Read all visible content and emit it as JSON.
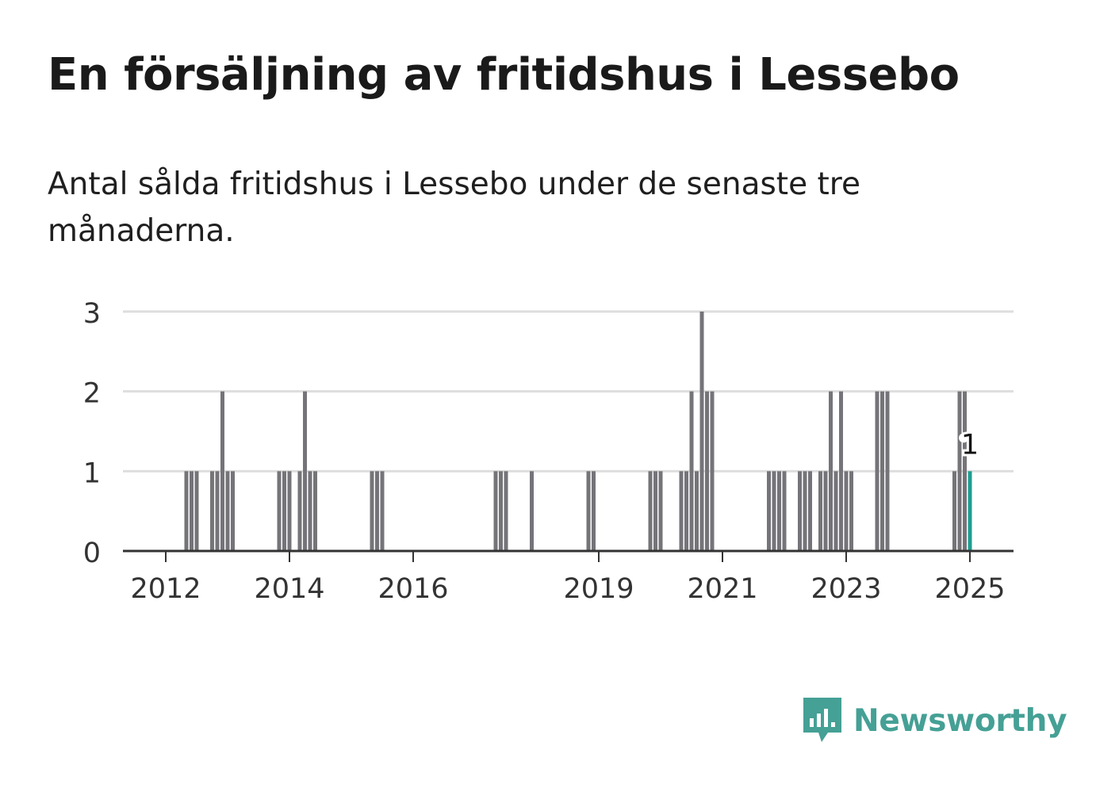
{
  "header": {
    "title": "En försäljning av fritidshus i Lessebo",
    "subtitle": "Antal sålda fritidshus i Lessebo under de senaste tre månaderna."
  },
  "logo": {
    "text": "Newsworthy",
    "icon": "newsworthy-logo-icon",
    "color": "#45a095"
  },
  "colors": {
    "bar": "#747479",
    "highlight": "#1e9e91",
    "grid": "#dedede",
    "axis": "#333333"
  },
  "chart_data": {
    "type": "bar",
    "ylim": [
      0,
      3
    ],
    "yticks": [
      0,
      1,
      2,
      3
    ],
    "xticks": [
      "2012",
      "2014",
      "2016",
      "2019",
      "2021",
      "2023",
      "2025"
    ],
    "grid": true,
    "highlight_label": "1",
    "months": [
      [
        "2012-01",
        0
      ],
      [
        "2012-02",
        0
      ],
      [
        "2012-03",
        0
      ],
      [
        "2012-04",
        0
      ],
      [
        "2012-05",
        1
      ],
      [
        "2012-06",
        1
      ],
      [
        "2012-07",
        1
      ],
      [
        "2012-08",
        0
      ],
      [
        "2012-09",
        0
      ],
      [
        "2012-10",
        1
      ],
      [
        "2012-11",
        1
      ],
      [
        "2012-12",
        2
      ],
      [
        "2013-01",
        1
      ],
      [
        "2013-02",
        1
      ],
      [
        "2013-03",
        0
      ],
      [
        "2013-04",
        0
      ],
      [
        "2013-05",
        0
      ],
      [
        "2013-06",
        0
      ],
      [
        "2013-07",
        0
      ],
      [
        "2013-08",
        0
      ],
      [
        "2013-09",
        0
      ],
      [
        "2013-10",
        0
      ],
      [
        "2013-11",
        1
      ],
      [
        "2013-12",
        1
      ],
      [
        "2014-01",
        1
      ],
      [
        "2014-02",
        0
      ],
      [
        "2014-03",
        1
      ],
      [
        "2014-04",
        2
      ],
      [
        "2014-05",
        1
      ],
      [
        "2014-06",
        1
      ],
      [
        "2014-07",
        0
      ],
      [
        "2014-08",
        0
      ],
      [
        "2014-09",
        0
      ],
      [
        "2014-10",
        0
      ],
      [
        "2014-11",
        0
      ],
      [
        "2014-12",
        0
      ],
      [
        "2015-01",
        0
      ],
      [
        "2015-02",
        0
      ],
      [
        "2015-03",
        0
      ],
      [
        "2015-04",
        0
      ],
      [
        "2015-05",
        1
      ],
      [
        "2015-06",
        1
      ],
      [
        "2015-07",
        1
      ],
      [
        "2015-08",
        0
      ],
      [
        "2015-09",
        0
      ],
      [
        "2015-10",
        0
      ],
      [
        "2015-11",
        0
      ],
      [
        "2015-12",
        0
      ],
      [
        "2016-01",
        0
      ],
      [
        "2016-02",
        0
      ],
      [
        "2016-03",
        0
      ],
      [
        "2016-04",
        0
      ],
      [
        "2016-05",
        0
      ],
      [
        "2016-06",
        0
      ],
      [
        "2016-07",
        0
      ],
      [
        "2016-08",
        0
      ],
      [
        "2016-09",
        0
      ],
      [
        "2016-10",
        0
      ],
      [
        "2016-11",
        0
      ],
      [
        "2016-12",
        0
      ],
      [
        "2017-01",
        0
      ],
      [
        "2017-02",
        0
      ],
      [
        "2017-03",
        0
      ],
      [
        "2017-04",
        0
      ],
      [
        "2017-05",
        1
      ],
      [
        "2017-06",
        1
      ],
      [
        "2017-07",
        1
      ],
      [
        "2017-08",
        0
      ],
      [
        "2017-09",
        0
      ],
      [
        "2017-10",
        0
      ],
      [
        "2017-11",
        0
      ],
      [
        "2017-12",
        1
      ],
      [
        "2018-01",
        0
      ],
      [
        "2018-02",
        0
      ],
      [
        "2018-03",
        0
      ],
      [
        "2018-04",
        0
      ],
      [
        "2018-05",
        0
      ],
      [
        "2018-06",
        0
      ],
      [
        "2018-07",
        0
      ],
      [
        "2018-08",
        0
      ],
      [
        "2018-09",
        0
      ],
      [
        "2018-10",
        0
      ],
      [
        "2018-11",
        1
      ],
      [
        "2018-12",
        1
      ],
      [
        "2019-01",
        0
      ],
      [
        "2019-02",
        0
      ],
      [
        "2019-03",
        0
      ],
      [
        "2019-04",
        0
      ],
      [
        "2019-05",
        0
      ],
      [
        "2019-06",
        0
      ],
      [
        "2019-07",
        0
      ],
      [
        "2019-08",
        0
      ],
      [
        "2019-09",
        0
      ],
      [
        "2019-10",
        0
      ],
      [
        "2019-11",
        1
      ],
      [
        "2019-12",
        1
      ],
      [
        "2020-01",
        1
      ],
      [
        "2020-02",
        0
      ],
      [
        "2020-03",
        0
      ],
      [
        "2020-04",
        0
      ],
      [
        "2020-05",
        1
      ],
      [
        "2020-06",
        1
      ],
      [
        "2020-07",
        2
      ],
      [
        "2020-08",
        1
      ],
      [
        "2020-09",
        3
      ],
      [
        "2020-10",
        2
      ],
      [
        "2020-11",
        2
      ],
      [
        "2020-12",
        0
      ],
      [
        "2021-01",
        0
      ],
      [
        "2021-02",
        0
      ],
      [
        "2021-03",
        0
      ],
      [
        "2021-04",
        0
      ],
      [
        "2021-05",
        0
      ],
      [
        "2021-06",
        0
      ],
      [
        "2021-07",
        0
      ],
      [
        "2021-08",
        0
      ],
      [
        "2021-09",
        0
      ],
      [
        "2021-10",
        1
      ],
      [
        "2021-11",
        1
      ],
      [
        "2021-12",
        1
      ],
      [
        "2022-01",
        1
      ],
      [
        "2022-02",
        0
      ],
      [
        "2022-03",
        0
      ],
      [
        "2022-04",
        1
      ],
      [
        "2022-05",
        1
      ],
      [
        "2022-06",
        1
      ],
      [
        "2022-07",
        0
      ],
      [
        "2022-08",
        1
      ],
      [
        "2022-09",
        1
      ],
      [
        "2022-10",
        2
      ],
      [
        "2022-11",
        1
      ],
      [
        "2022-12",
        2
      ],
      [
        "2023-01",
        1
      ],
      [
        "2023-02",
        1
      ],
      [
        "2023-03",
        0
      ],
      [
        "2023-04",
        0
      ],
      [
        "2023-05",
        0
      ],
      [
        "2023-06",
        0
      ],
      [
        "2023-07",
        2
      ],
      [
        "2023-08",
        2
      ],
      [
        "2023-09",
        2
      ],
      [
        "2023-10",
        0
      ],
      [
        "2023-11",
        0
      ],
      [
        "2023-12",
        0
      ],
      [
        "2024-01",
        0
      ],
      [
        "2024-02",
        0
      ],
      [
        "2024-03",
        0
      ],
      [
        "2024-04",
        0
      ],
      [
        "2024-05",
        0
      ],
      [
        "2024-06",
        0
      ],
      [
        "2024-07",
        0
      ],
      [
        "2024-08",
        0
      ],
      [
        "2024-09",
        0
      ],
      [
        "2024-10",
        1
      ],
      [
        "2024-11",
        2
      ],
      [
        "2024-12",
        2
      ],
      [
        "2025-01",
        1
      ]
    ]
  }
}
